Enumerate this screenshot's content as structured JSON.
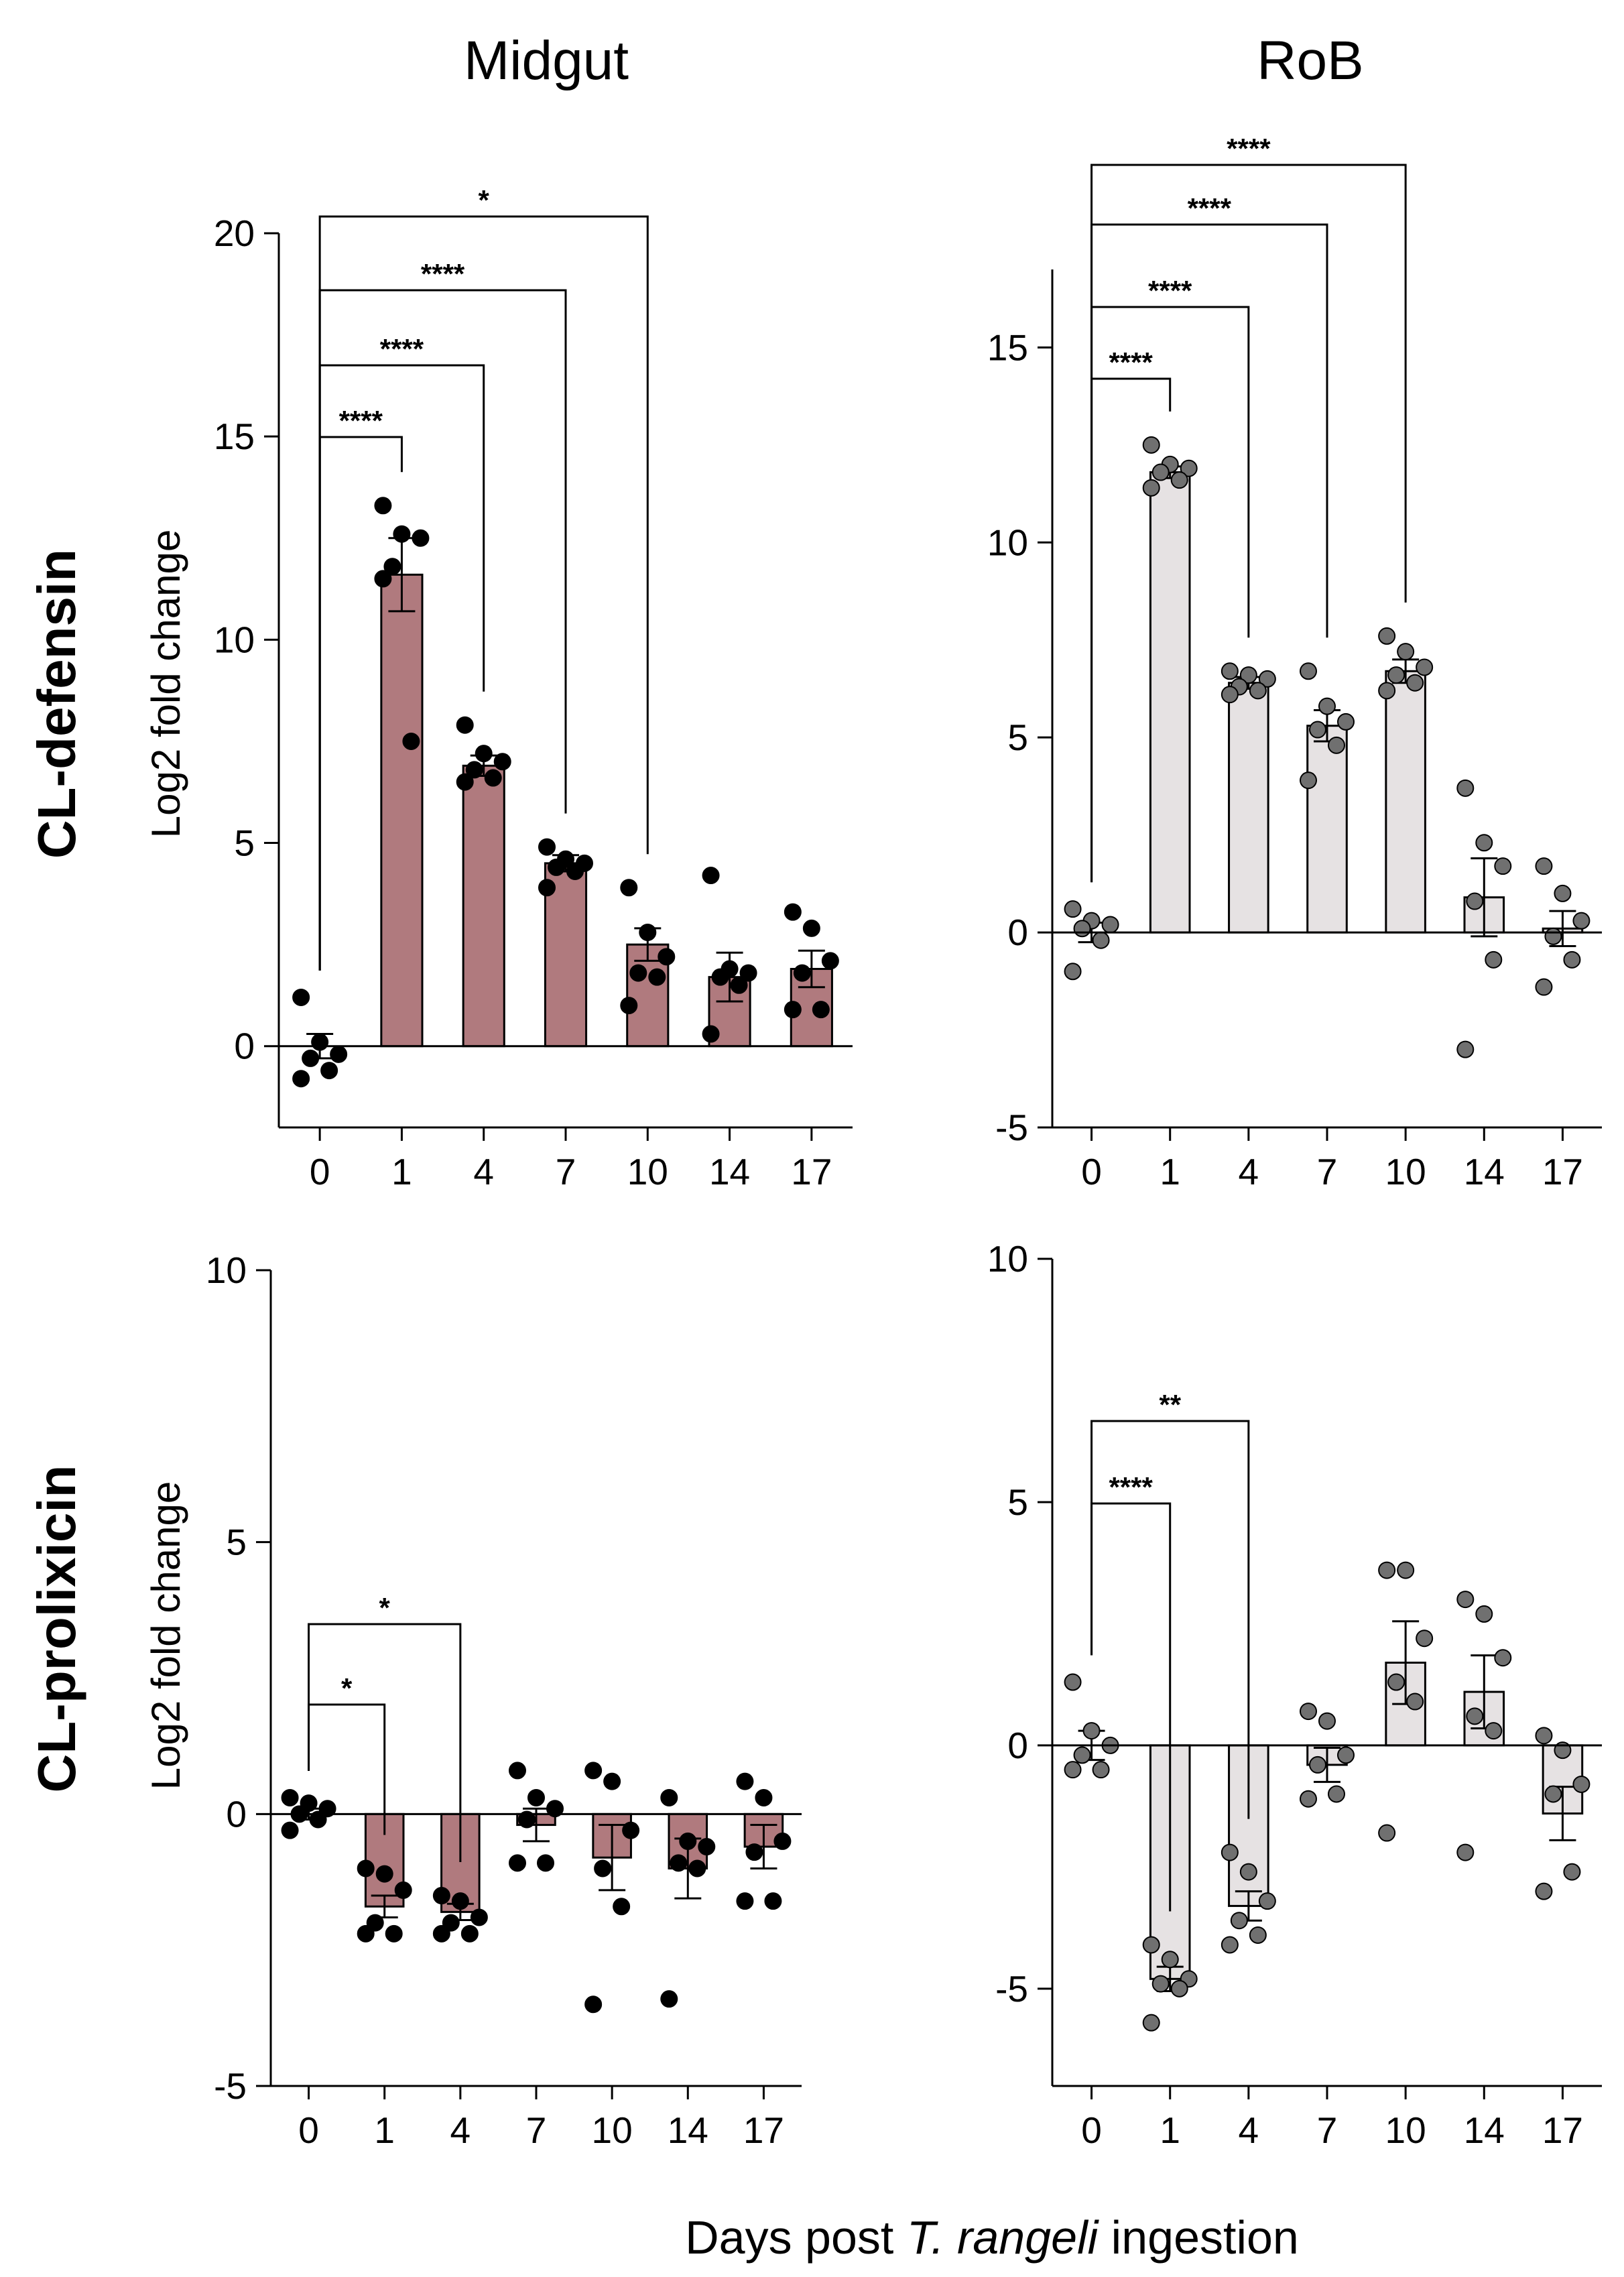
{
  "figure": {
    "column_titles": [
      "Midgut",
      "RoB"
    ],
    "row_labels": [
      "CL-defensin",
      "CL-prolixicin"
    ],
    "xlabel_prefix": "Days post ",
    "xlabel_italic": "T. rangeli",
    "xlabel_suffix": " ingestion",
    "ylabel": "Log2 fold change",
    "colors": {
      "midgut_bar": "#b07a7e",
      "rob_bar": "#e6e2e3",
      "midgut_dot": "#000000",
      "rob_dot": "#707070"
    }
  },
  "chart_data": [
    {
      "type": "bar",
      "panel": "Midgut / CL-defensin",
      "categories": [
        "0",
        "1",
        "4",
        "7",
        "10",
        "14",
        "17"
      ],
      "values": [
        0,
        11.6,
        6.9,
        4.5,
        2.5,
        1.7,
        1.9
      ],
      "sem": [
        0.3,
        0.9,
        0.25,
        0.2,
        0.4,
        0.6,
        0.45
      ],
      "points": [
        [
          1.2,
          0.1,
          -0.2,
          -0.3,
          -0.6,
          -0.8
        ],
        [
          13.3,
          12.6,
          12.5,
          11.8,
          7.5,
          11.5
        ],
        [
          7.9,
          7.2,
          7.0,
          6.8,
          6.6,
          6.5
        ],
        [
          4.9,
          4.6,
          4.5,
          4.4,
          4.3,
          3.9
        ],
        [
          3.9,
          2.8,
          2.2,
          1.8,
          1.7,
          1.0
        ],
        [
          4.2,
          1.9,
          1.8,
          1.7,
          1.5,
          0.3
        ],
        [
          3.3,
          2.9,
          2.1,
          1.8,
          0.9,
          0.9
        ]
      ],
      "ylim": [
        -2,
        20
      ],
      "yticks": [
        "0",
        "5",
        "10",
        "15",
        "20"
      ],
      "brackets": [
        {
          "from": "0",
          "to": "1",
          "label": "****"
        },
        {
          "from": "0",
          "to": "4",
          "label": "****"
        },
        {
          "from": "0",
          "to": "7",
          "label": "****"
        },
        {
          "from": "0",
          "to": "10",
          "label": "*"
        }
      ]
    },
    {
      "type": "bar",
      "panel": "RoB / CL-defensin",
      "categories": [
        "0",
        "1",
        "4",
        "7",
        "10",
        "14",
        "17"
      ],
      "values": [
        0,
        11.8,
        6.4,
        5.3,
        6.7,
        0.9,
        0.1
      ],
      "sem": [
        0.25,
        0.15,
        0.15,
        0.4,
        0.3,
        1.0,
        0.45
      ],
      "points": [
        [
          0.6,
          0.3,
          0.2,
          0.1,
          -0.2,
          -1.0
        ],
        [
          12.5,
          12.0,
          11.9,
          11.8,
          11.6,
          11.4
        ],
        [
          6.7,
          6.6,
          6.5,
          6.3,
          6.2,
          6.1
        ],
        [
          6.7,
          5.8,
          5.4,
          5.2,
          4.8,
          3.9
        ],
        [
          7.6,
          7.2,
          6.8,
          6.6,
          6.4,
          6.2
        ],
        [
          3.7,
          2.3,
          1.7,
          0.8,
          -0.7,
          -3.0
        ],
        [
          1.7,
          1.0,
          0.3,
          -0.1,
          -0.7,
          -1.4
        ]
      ],
      "ylim": [
        -5,
        17
      ],
      "yticks": [
        "-5",
        "0",
        "5",
        "10",
        "15"
      ],
      "brackets": [
        {
          "from": "0",
          "to": "1",
          "label": "****"
        },
        {
          "from": "0",
          "to": "4",
          "label": "****"
        },
        {
          "from": "0",
          "to": "7",
          "label": "****"
        },
        {
          "from": "0",
          "to": "10",
          "label": "****"
        }
      ]
    },
    {
      "type": "bar",
      "panel": "Midgut / CL-prolixicin",
      "categories": [
        "0",
        "1",
        "4",
        "7",
        "10",
        "14",
        "17"
      ],
      "values": [
        0,
        -1.7,
        -1.8,
        -0.2,
        -0.8,
        -1.0,
        -0.6
      ],
      "sem": [
        0.1,
        0.2,
        0.15,
        0.3,
        0.6,
        0.55,
        0.4
      ],
      "points": [
        [
          0.3,
          0.2,
          0.1,
          0.0,
          -0.1,
          -0.3
        ],
        [
          -1.0,
          -1.1,
          -1.4,
          -2.0,
          -2.2,
          -2.2
        ],
        [
          -1.5,
          -1.6,
          -1.9,
          -2.0,
          -2.2,
          -2.2
        ],
        [
          0.8,
          0.3,
          0.1,
          -0.1,
          -0.9,
          -0.9
        ],
        [
          0.8,
          0.6,
          -0.3,
          -1.0,
          -1.7,
          -3.5
        ],
        [
          0.3,
          -0.5,
          -0.6,
          -0.9,
          -1.0,
          -3.4
        ],
        [
          0.6,
          0.3,
          -0.5,
          -0.7,
          -1.6,
          -1.6
        ]
      ],
      "ylim": [
        -5,
        10
      ],
      "yticks": [
        "-5",
        "0",
        "5",
        "10"
      ],
      "brackets": [
        {
          "from": "0",
          "to": "1",
          "label": "*"
        },
        {
          "from": "0",
          "to": "4",
          "label": "*"
        }
      ]
    },
    {
      "type": "bar",
      "panel": "RoB / CL-prolixicin",
      "categories": [
        "0",
        "1",
        "4",
        "7",
        "10",
        "14",
        "17"
      ],
      "values": [
        0,
        -4.8,
        -3.3,
        -0.4,
        1.7,
        1.1,
        -1.4
      ],
      "sem": [
        0.3,
        0.25,
        0.3,
        0.35,
        0.85,
        0.75,
        0.55
      ],
      "points": [
        [
          1.3,
          0.3,
          0.0,
          -0.2,
          -0.5,
          -0.5
        ],
        [
          -4.1,
          -4.4,
          -4.8,
          -4.9,
          -5.0,
          -5.7
        ],
        [
          -2.2,
          -2.6,
          -3.2,
          -3.6,
          -3.9,
          -4.1
        ],
        [
          0.7,
          0.5,
          -0.2,
          -0.4,
          -1.0,
          -1.1
        ],
        [
          3.6,
          3.6,
          2.2,
          1.3,
          0.9,
          -1.8
        ],
        [
          3.0,
          2.7,
          1.8,
          0.6,
          0.3,
          -2.2
        ],
        [
          0.2,
          -0.1,
          -0.8,
          -1.0,
          -2.6,
          -3.0
        ]
      ],
      "ylim": [
        -7,
        10
      ],
      "yticks": [
        "-5",
        "0",
        "5",
        "10"
      ],
      "brackets": [
        {
          "from": "0",
          "to": "1",
          "label": "****"
        },
        {
          "from": "0",
          "to": "4",
          "label": "**"
        }
      ]
    }
  ]
}
